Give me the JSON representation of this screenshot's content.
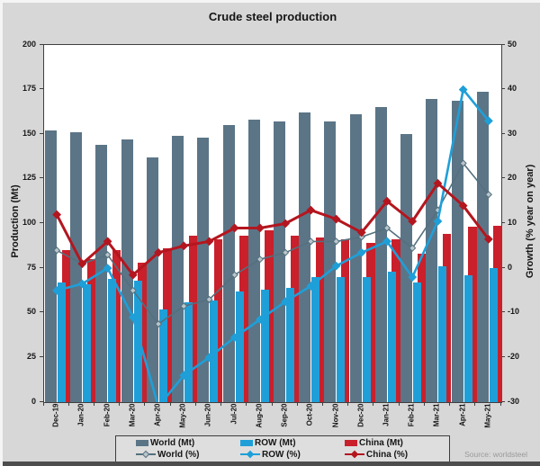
{
  "page": {
    "title": "Crude steel production",
    "source": "Source: worldsteel"
  },
  "chart_data": {
    "type": "bar+line combo",
    "title": "Crude steel production",
    "grid": false,
    "legend_position": "bottom",
    "categories": [
      "Dec-19",
      "Jan-20",
      "Feb-20",
      "Mar-20",
      "Apr-20",
      "May-20",
      "Jun-20",
      "Jul-20",
      "Aug-20",
      "Sep-20",
      "Oct-20",
      "Nov-20",
      "Dec-20",
      "Jan-21",
      "Feb-21",
      "Mar-21",
      "Apr-21",
      "May-21"
    ],
    "left_axis": {
      "label": "Production (Mt)",
      "min": 0,
      "max": 200,
      "tick_step": 25,
      "ticks": [
        0,
        25,
        50,
        75,
        100,
        125,
        150,
        175,
        200
      ]
    },
    "right_axis": {
      "label": "Growth (% year on year)",
      "min": -30,
      "max": 50,
      "tick_step": 10,
      "ticks": [
        -30,
        -20,
        -10,
        0,
        10,
        20,
        30,
        40,
        50
      ]
    },
    "series": [
      {
        "name": "World (Mt)",
        "type": "bar",
        "axis": "left",
        "color": "#5b7587",
        "values": [
          152,
          151,
          144,
          147,
          137,
          149,
          148,
          155,
          158,
          157,
          162,
          157,
          161,
          165,
          150,
          170,
          169,
          174
        ]
      },
      {
        "name": "ROW (Mt)",
        "type": "bar",
        "axis": "left",
        "color": "#1f9fd8",
        "values": [
          67,
          66,
          69,
          68,
          52,
          56,
          57,
          62,
          63,
          64,
          70,
          70,
          70,
          73,
          67,
          76,
          71,
          75
        ]
      },
      {
        "name": "China (Mt)",
        "type": "bar",
        "axis": "left",
        "color": "#c9202b",
        "values": [
          85,
          80,
          85,
          78,
          86,
          93,
          91,
          93,
          96,
          93,
          92,
          91,
          89,
          91,
          83,
          94,
          98,
          99
        ]
      },
      {
        "name": "World (%)",
        "type": "line",
        "axis": "right",
        "color": "#54707e",
        "marker_fill": "#b9c6cc",
        "values": [
          4,
          1,
          3,
          -5,
          -12.5,
          -8.5,
          -7,
          -1.5,
          2,
          3.5,
          6,
          6,
          7,
          9,
          4.5,
          13,
          23.5,
          16.5
        ]
      },
      {
        "name": "ROW (%)",
        "type": "line",
        "axis": "right",
        "color": "#1f9fd8",
        "marker_fill": "#1f9fd8",
        "values": [
          -5,
          -3.5,
          0,
          -11,
          -31,
          -24,
          -20,
          -15.5,
          -11.5,
          -7.5,
          -4,
          0.5,
          3.5,
          6,
          -2,
          10.5,
          40,
          33
        ]
      },
      {
        "name": "China (%)",
        "type": "line",
        "axis": "right",
        "color": "#b4161f",
        "marker_fill": "#b4161f",
        "values": [
          12,
          1,
          6,
          -1.5,
          3.5,
          5,
          6,
          9,
          9,
          10,
          13,
          11,
          8,
          15,
          10.5,
          19,
          14,
          6.5
        ]
      }
    ]
  },
  "legend": {
    "row1": [
      {
        "label": "World (Mt)",
        "color": "#5b7587"
      },
      {
        "label": "ROW (Mt)",
        "color": "#1f9fd8"
      },
      {
        "label": "China (Mt)",
        "color": "#c9202b"
      }
    ],
    "row2": [
      {
        "label": "World (%)",
        "color": "#54707e",
        "marker_fill": "#b9c6cc"
      },
      {
        "label": "ROW (%)",
        "color": "#1f9fd8",
        "marker_fill": "#1f9fd8"
      },
      {
        "label": "China (%)",
        "color": "#b4161f",
        "marker_fill": "#b4161f"
      }
    ]
  }
}
